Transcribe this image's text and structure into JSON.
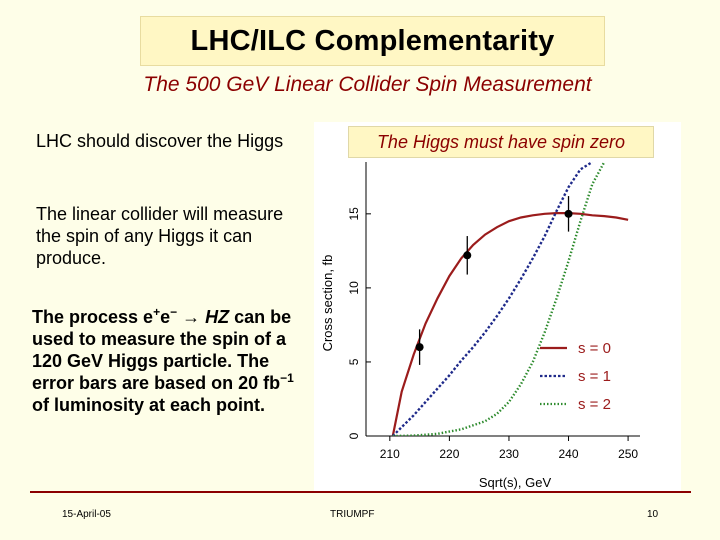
{
  "slide": {
    "title": "LHC/ILC Complementarity",
    "subtitle": "The 500 GeV Linear Collider Spin Measurement",
    "bullet1": "LHC should discover the Higgs",
    "bullet2": "The linear collider will measure the spin of any Higgs it can produce.",
    "bullet3": {
      "pre": "The process e",
      "sup1": "+",
      "mid": "e",
      "sup2": "−",
      "arrow": " → ",
      "hz": "HZ",
      "post": " can be used to measure the spin of a 120 GeV Higgs particle.  The error bars are based on 20 fb",
      "sup3": "−1",
      "tail": " of luminosity at each point."
    },
    "callout": "The Higgs must have spin zero",
    "footer": {
      "date": "15-April-05",
      "org": "TRIUMPF",
      "page": "10"
    }
  },
  "chart_data": {
    "type": "line",
    "xlabel": "Sqrt(s),  GeV",
    "ylabel": "Cross section,  fb",
    "xlim": [
      206,
      252
    ],
    "ylim": [
      0,
      18.5
    ],
    "xticks": [
      210,
      220,
      230,
      240,
      250
    ],
    "yticks": [
      0,
      5,
      10,
      15
    ],
    "grid": false,
    "legend_position": "right",
    "series": [
      {
        "name": "s = 0",
        "color": "#9b1c1c",
        "style": "solid",
        "x": [
          210.5,
          212,
          214,
          216,
          218,
          220,
          222,
          224,
          226,
          228,
          230,
          232,
          234,
          236,
          238,
          240,
          242,
          244,
          246,
          248,
          250
        ],
        "y": [
          0,
          3.0,
          5.5,
          7.6,
          9.3,
          10.8,
          12.0,
          12.9,
          13.6,
          14.1,
          14.5,
          14.75,
          14.9,
          15.0,
          15.05,
          15.05,
          15.0,
          14.9,
          14.85,
          14.75,
          14.6
        ]
      },
      {
        "name": "s = 1",
        "color": "#1f2a8a",
        "style": "dotted",
        "x": [
          210.5,
          212,
          214,
          216,
          218,
          220,
          222,
          224,
          226,
          228,
          230,
          232,
          234,
          236,
          238,
          240,
          242,
          244
        ],
        "y": [
          0,
          0.6,
          1.4,
          2.3,
          3.2,
          4.1,
          5.1,
          6.0,
          7.0,
          8.1,
          9.3,
          10.6,
          12.0,
          13.5,
          15.2,
          16.8,
          18.0,
          18.5
        ]
      },
      {
        "name": "s = 2",
        "color": "#2e8b2e",
        "style": "dotted",
        "x": [
          210.5,
          214,
          218,
          222,
          226,
          228,
          230,
          232,
          234,
          236,
          238,
          240,
          242,
          244,
          246
        ],
        "y": [
          0,
          0.03,
          0.15,
          0.45,
          1.0,
          1.5,
          2.3,
          3.5,
          5.0,
          7.0,
          9.3,
          11.8,
          14.5,
          17.0,
          18.5
        ]
      }
    ],
    "measurements": [
      {
        "x": 215,
        "y": 6.0,
        "err": 1.2
      },
      {
        "x": 223,
        "y": 12.2,
        "err": 1.3
      },
      {
        "x": 240,
        "y": 15.0,
        "err": 1.2
      }
    ]
  }
}
